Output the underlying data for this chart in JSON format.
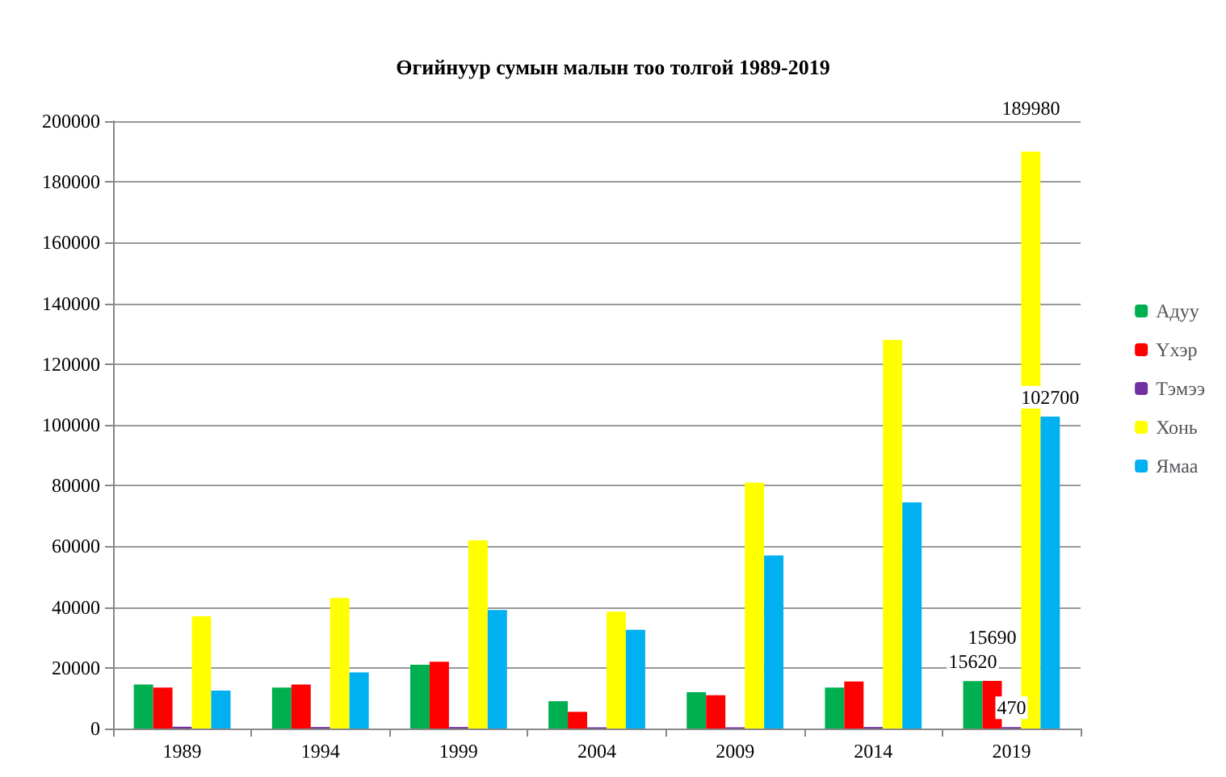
{
  "chart_data": {
    "type": "bar",
    "title": "Өгийнуур сумын малын тоо толгой 1989-2019",
    "categories": [
      "1989",
      "1994",
      "1999",
      "2004",
      "2009",
      "2014",
      "2019"
    ],
    "series": [
      {
        "name": "Адуу",
        "color": "#00b050",
        "values": [
          14500,
          13500,
          21000,
          9000,
          12000,
          13500,
          15620
        ],
        "value_labels": [
          null,
          null,
          null,
          null,
          null,
          null,
          "15620"
        ]
      },
      {
        "name": "Үхэр",
        "color": "#ff0000",
        "values": [
          13500,
          14500,
          22000,
          5500,
          11000,
          15500,
          15690
        ],
        "value_labels": [
          null,
          null,
          null,
          null,
          null,
          null,
          "15690"
        ]
      },
      {
        "name": "Тэмээ",
        "color": "#7030a0",
        "values": [
          600,
          500,
          500,
          400,
          400,
          500,
          470
        ],
        "value_labels": [
          null,
          null,
          null,
          null,
          null,
          null,
          "470"
        ]
      },
      {
        "name": "Хонь",
        "color": "#ffff00",
        "values": [
          37000,
          43000,
          62000,
          38500,
          81000,
          128000,
          189980
        ],
        "value_labels": [
          null,
          null,
          null,
          null,
          null,
          null,
          "189980"
        ]
      },
      {
        "name": "Ямаа",
        "color": "#00b0f0",
        "values": [
          12500,
          18500,
          39000,
          32500,
          57000,
          74500,
          102700
        ],
        "value_labels": [
          null,
          null,
          null,
          null,
          null,
          null,
          "102700"
        ]
      }
    ],
    "ylim": [
      0,
      200000
    ],
    "yticks": [
      0,
      20000,
      40000,
      60000,
      80000,
      100000,
      120000,
      140000,
      160000,
      180000,
      200000
    ],
    "grid": "y",
    "legend": "right"
  }
}
